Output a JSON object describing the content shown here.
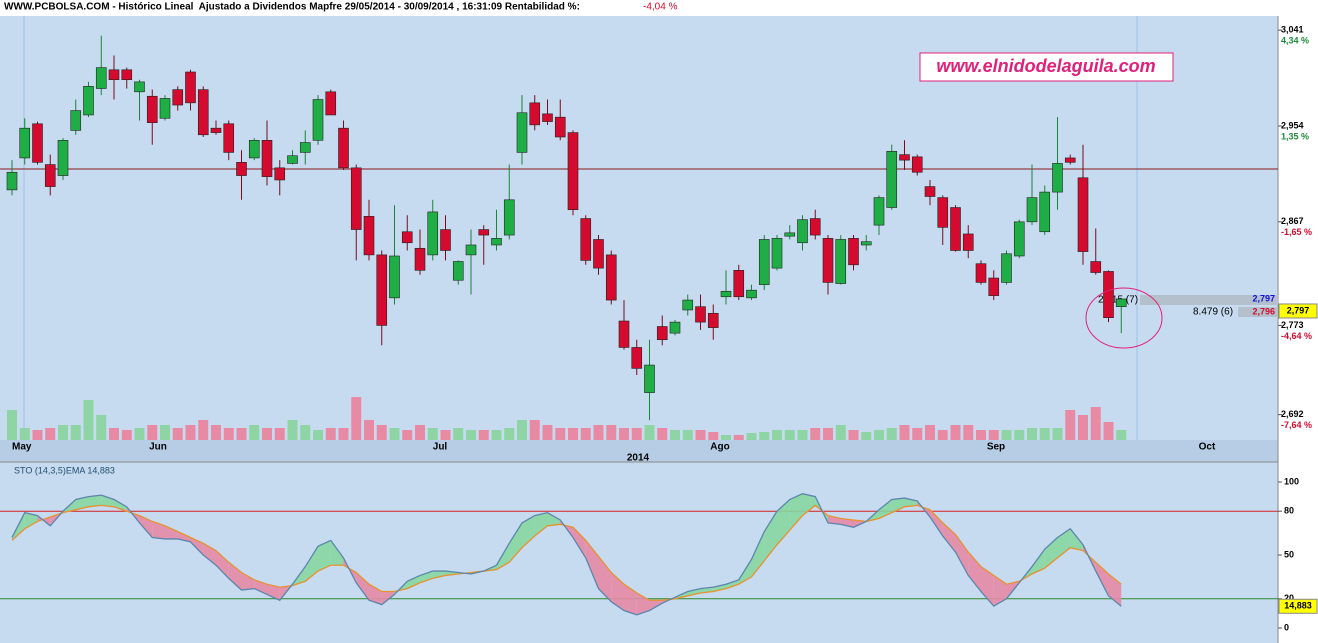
{
  "chart_data": [
    {
      "type": "candlestick",
      "title": "WWW.PCBOLSA.COM - Histórico Lineal  Ajustado a Dividendos Mapfre 29/05/2014 - 30/09/2014 , 16:31:09 Rentabilidad %:",
      "return_label": "-4,04 %",
      "watermark": "www.elnidodelaguila.com",
      "up_color": "#1fae45",
      "down_color": "#d40a2e",
      "volume_up_color": "#8ed4a4",
      "volume_down_color": "#e98aa4",
      "open": [
        2.896,
        2.925,
        2.956,
        2.919,
        2.909,
        2.95,
        2.964,
        2.988,
        3.005,
        3.005,
        2.985,
        2.981,
        2.961,
        2.987,
        3.003,
        2.987,
        2.952,
        2.956,
        2.921,
        2.925,
        2.941,
        2.916,
        2.92,
        2.93,
        2.941,
        2.985,
        2.952,
        2.916,
        2.872,
        2.837,
        2.798,
        2.858,
        2.843,
        2.837,
        2.86,
        2.814,
        2.837,
        2.86,
        2.846,
        2.855,
        2.93,
        2.975,
        2.965,
        2.962,
        2.948,
        2.87,
        2.851,
        2.837,
        2.777,
        2.753,
        2.712,
        2.772,
        2.766,
        2.787,
        2.79,
        2.784,
        2.799,
        2.823,
        2.798,
        2.81,
        2.825,
        2.854,
        2.848,
        2.87,
        2.852,
        2.811,
        2.852,
        2.846,
        2.864,
        2.88,
        2.928,
        2.926,
        2.899,
        2.889,
        2.88,
        2.856,
        2.829,
        2.816,
        2.812,
        2.836,
        2.867,
        2.858,
        2.894,
        2.925,
        2.907,
        2.831,
        2.822,
        2.79
      ],
      "high": [
        2.923,
        2.961,
        2.958,
        2.928,
        2.943,
        2.978,
        2.994,
        3.036,
        3.018,
        3.007,
        2.996,
        2.987,
        2.982,
        2.99,
        3.005,
        2.99,
        2.959,
        2.959,
        2.932,
        2.943,
        2.959,
        2.923,
        2.932,
        2.95,
        2.982,
        2.987,
        2.959,
        2.919,
        2.887,
        2.841,
        2.882,
        2.873,
        2.86,
        2.887,
        2.873,
        2.832,
        2.86,
        2.864,
        2.878,
        2.919,
        2.982,
        2.982,
        2.978,
        2.978,
        2.95,
        2.873,
        2.855,
        2.841,
        2.796,
        2.76,
        2.76,
        2.782,
        2.778,
        2.801,
        2.801,
        2.792,
        2.823,
        2.828,
        2.81,
        2.855,
        2.855,
        2.864,
        2.873,
        2.878,
        2.855,
        2.855,
        2.855,
        2.855,
        2.891,
        2.937,
        2.941,
        2.928,
        2.905,
        2.891,
        2.882,
        2.864,
        2.832,
        2.823,
        2.841,
        2.869,
        2.919,
        2.9,
        2.962,
        2.928,
        2.937,
        2.861,
        2.823,
        2.798
      ],
      "low": [
        2.891,
        2.919,
        2.919,
        2.891,
        2.905,
        2.946,
        2.962,
        2.982,
        2.978,
        2.988,
        2.959,
        2.937,
        2.959,
        2.968,
        2.968,
        2.944,
        2.946,
        2.923,
        2.887,
        2.923,
        2.9,
        2.891,
        2.919,
        2.919,
        2.937,
        2.964,
        2.914,
        2.832,
        2.832,
        2.755,
        2.792,
        2.841,
        2.819,
        2.832,
        2.832,
        2.81,
        2.801,
        2.828,
        2.841,
        2.851,
        2.919,
        2.95,
        2.955,
        2.941,
        2.873,
        2.828,
        2.819,
        2.792,
        2.751,
        2.728,
        2.687,
        2.755,
        2.764,
        2.782,
        2.769,
        2.76,
        2.792,
        2.796,
        2.796,
        2.805,
        2.823,
        2.851,
        2.841,
        2.851,
        2.801,
        2.81,
        2.823,
        2.841,
        2.855,
        2.878,
        2.914,
        2.909,
        2.882,
        2.846,
        2.84,
        2.834,
        2.81,
        2.796,
        2.81,
        2.834,
        2.864,
        2.855,
        2.878,
        2.919,
        2.828,
        2.819,
        2.776,
        2.766
      ],
      "close": [
        2.912,
        2.952,
        2.921,
        2.899,
        2.941,
        2.968,
        2.99,
        3.007,
        2.996,
        2.996,
        2.994,
        2.957,
        2.979,
        2.973,
        2.975,
        2.946,
        2.948,
        2.93,
        2.909,
        2.941,
        2.908,
        2.905,
        2.927,
        2.939,
        2.978,
        2.964,
        2.916,
        2.86,
        2.837,
        2.773,
        2.836,
        2.848,
        2.823,
        2.876,
        2.841,
        2.831,
        2.846,
        2.855,
        2.852,
        2.887,
        2.966,
        2.955,
        2.958,
        2.944,
        2.878,
        2.832,
        2.825,
        2.796,
        2.753,
        2.734,
        2.737,
        2.76,
        2.776,
        2.796,
        2.776,
        2.771,
        2.804,
        2.799,
        2.805,
        2.851,
        2.852,
        2.857,
        2.869,
        2.855,
        2.812,
        2.851,
        2.828,
        2.849,
        2.889,
        2.931,
        2.923,
        2.912,
        2.89,
        2.862,
        2.841,
        2.841,
        2.812,
        2.8,
        2.838,
        2.867,
        2.889,
        2.894,
        2.92,
        2.921,
        2.84,
        2.821,
        2.78,
        2.797
      ],
      "volume": [
        30,
        12,
        10,
        12,
        15,
        15,
        40,
        25,
        12,
        10,
        12,
        15,
        15,
        12,
        15,
        20,
        15,
        12,
        12,
        15,
        12,
        12,
        20,
        15,
        10,
        12,
        12,
        43,
        20,
        15,
        12,
        10,
        15,
        12,
        10,
        12,
        10,
        10,
        10,
        12,
        20,
        20,
        15,
        12,
        12,
        12,
        15,
        15,
        12,
        12,
        15,
        12,
        10,
        10,
        10,
        8,
        5,
        5,
        7,
        8,
        10,
        10,
        10,
        12,
        12,
        15,
        10,
        8,
        10,
        12,
        15,
        12,
        15,
        10,
        15,
        15,
        10,
        10,
        10,
        10,
        12,
        12,
        12,
        30,
        25,
        33,
        18,
        10
      ],
      "ylim": [
        2.669,
        3.052
      ],
      "yticks": [
        {
          "value": 3.041,
          "label": "3,041"
        },
        {
          "value": 2.954,
          "label": "2,954"
        },
        {
          "value": 2.867,
          "label": "2,867"
        },
        {
          "value": 2.773,
          "label": "2,773"
        },
        {
          "value": 2.692,
          "label": "2,692"
        }
      ],
      "ytick_changes": [
        "4,34 %",
        "1,35 %",
        "-1,65 %",
        "-4,64 %",
        "-7,64 %"
      ],
      "reference_line": 2.915,
      "months": [
        "May",
        "Jun",
        "Jul",
        "Ago",
        "Sep",
        "Oct"
      ],
      "year_label": "2014",
      "annotations": [
        "2.015 (7)",
        "8.479 (6)"
      ],
      "bid": {
        "value": 2.797,
        "label": "2,797"
      },
      "ask": {
        "value": 2.796,
        "label": "2,796"
      },
      "last_price": {
        "value": 2.797,
        "label": "2,797"
      }
    },
    {
      "type": "stochastic",
      "label": "STO (14,3,5)EMA 14,883",
      "k": [
        62,
        79,
        77,
        70,
        80,
        88,
        90,
        91,
        88,
        83,
        72,
        62,
        61,
        61,
        59,
        50,
        43,
        34,
        26,
        27,
        23,
        19,
        30,
        42,
        56,
        60,
        48,
        31,
        19,
        16,
        23,
        32,
        36,
        39,
        39,
        38,
        37,
        39,
        43,
        58,
        72,
        77,
        79,
        74,
        62,
        48,
        27,
        18,
        12,
        9,
        12,
        17,
        21,
        25,
        27,
        28,
        30,
        33,
        47,
        66,
        80,
        88,
        92,
        90,
        72,
        71,
        69,
        73,
        81,
        88,
        89,
        87,
        76,
        63,
        52,
        36,
        25,
        15,
        20,
        31,
        42,
        54,
        62,
        68,
        57,
        39,
        22,
        14.883
      ],
      "d": [
        60,
        68,
        73,
        76,
        79,
        81,
        83,
        84,
        83,
        80,
        77,
        73,
        70,
        66,
        62,
        58,
        53,
        45,
        38,
        33,
        30,
        28,
        29,
        32,
        39,
        43,
        43,
        38,
        30,
        25,
        25,
        27,
        31,
        34,
        36,
        37,
        38,
        39,
        40,
        45,
        55,
        63,
        70,
        71,
        69,
        60,
        49,
        38,
        30,
        24,
        19,
        19,
        20,
        22,
        24,
        25,
        27,
        30,
        35,
        46,
        57,
        67,
        77,
        84,
        77,
        75,
        74,
        73,
        75,
        79,
        83,
        84,
        81,
        72,
        64,
        52,
        42,
        36,
        30,
        32,
        37,
        41,
        48,
        55,
        53,
        45,
        37,
        30
      ],
      "k_color": "#5b86ad",
      "d_color": "#e8922e",
      "fill_up_color": "#86d6a0",
      "fill_down_color": "#e68aa6",
      "ylim": [
        0,
        100
      ],
      "yticks": [
        100,
        80,
        50,
        20,
        0
      ],
      "levels": [
        {
          "value": 80,
          "color": "#d42020"
        },
        {
          "value": 20,
          "color": "#2a8a2a"
        }
      ],
      "last_value": {
        "value": 14.883,
        "label": "14,883"
      }
    }
  ]
}
